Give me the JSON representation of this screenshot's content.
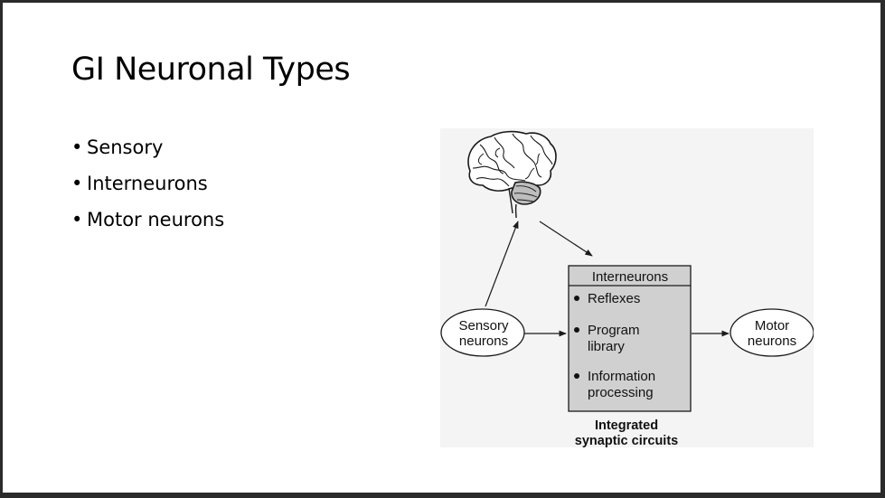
{
  "slide": {
    "title": "GI Neuronal Types",
    "bullets": [
      "Sensory",
      "Interneurons",
      "Motor neurons"
    ]
  },
  "diagram": {
    "brain_icon": "brain-icon",
    "sensory_line1": "Sensory",
    "sensory_line2": "neurons",
    "motor_line1": "Motor",
    "motor_line2": "neurons",
    "box_header": "Interneurons",
    "box_items": [
      {
        "line1": "Reflexes",
        "line2": ""
      },
      {
        "line1": "Program",
        "line2": "library"
      },
      {
        "line1": "Information",
        "line2": "processing"
      }
    ],
    "caption_line1": "Integrated",
    "caption_line2": "synaptic circuits",
    "colors": {
      "box_fill": "#d0d0d0",
      "cerebellum_fill": "#bdbdbd",
      "stroke": "#1a1a1a"
    }
  }
}
